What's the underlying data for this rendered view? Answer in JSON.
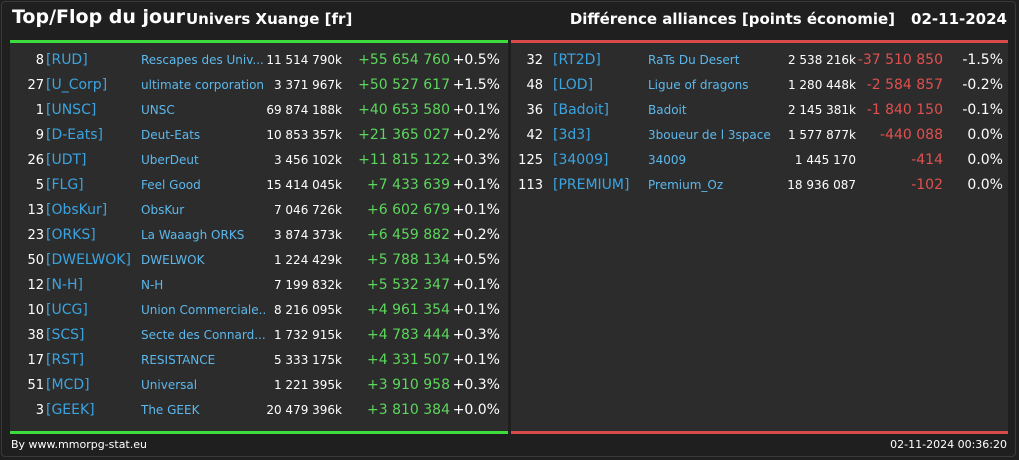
{
  "header": {
    "title": "Top/Flop du jour",
    "universe": "Univers Xuange [fr]",
    "section": "Différence alliances [points économie]",
    "date": "02-11-2024"
  },
  "colors": {
    "gain": "#5cd65c",
    "loss": "#e05050",
    "tag": "#3ba4e0"
  },
  "top": [
    {
      "rank": "8",
      "tag": "[RUD]",
      "name": "Rescapes des Univ...",
      "points": "11 514 790k",
      "diff": "+55 654 760",
      "pct": "+0.5%"
    },
    {
      "rank": "27",
      "tag": "[U_Corp]",
      "name": "ultimate corporation",
      "points": "3 371 967k",
      "diff": "+50 527 617",
      "pct": "+1.5%"
    },
    {
      "rank": "1",
      "tag": "[UNSC]",
      "name": "UNSC",
      "points": "69 874 188k",
      "diff": "+40 653 580",
      "pct": "+0.1%"
    },
    {
      "rank": "9",
      "tag": "[D-Eats]",
      "name": "Deut-Eats",
      "points": "10 853 357k",
      "diff": "+21 365 027",
      "pct": "+0.2%"
    },
    {
      "rank": "26",
      "tag": "[UDT]",
      "name": "UberDeut",
      "points": "3 456 102k",
      "diff": "+11 815 122",
      "pct": "+0.3%"
    },
    {
      "rank": "5",
      "tag": "[FLG]",
      "name": "Feel Good",
      "points": "15 414 045k",
      "diff": "+7 433 639",
      "pct": "+0.1%"
    },
    {
      "rank": "13",
      "tag": "[ObsKur]",
      "name": "ObsKur",
      "points": "7 046 726k",
      "diff": "+6 602 679",
      "pct": "+0.1%"
    },
    {
      "rank": "23",
      "tag": "[ORKS]",
      "name": "La Waaagh ORKS",
      "points": "3 874 373k",
      "diff": "+6 459 882",
      "pct": "+0.2%"
    },
    {
      "rank": "50",
      "tag": "[DWELWOK]",
      "name": "DWELWOK",
      "points": "1 224 429k",
      "diff": "+5 788 134",
      "pct": "+0.5%"
    },
    {
      "rank": "12",
      "tag": "[N-H]",
      "name": "N-H",
      "points": "7 199 832k",
      "diff": "+5 532 347",
      "pct": "+0.1%"
    },
    {
      "rank": "10",
      "tag": "[UCG]",
      "name": "Union Commerciale...",
      "points": "8 216 095k",
      "diff": "+4 961 354",
      "pct": "+0.1%"
    },
    {
      "rank": "38",
      "tag": "[SCS]",
      "name": "Secte des Connard...",
      "points": "1 732 915k",
      "diff": "+4 783 444",
      "pct": "+0.3%"
    },
    {
      "rank": "17",
      "tag": "[RST]",
      "name": "RESISTANCE",
      "points": "5 333 175k",
      "diff": "+4 331 507",
      "pct": "+0.1%"
    },
    {
      "rank": "51",
      "tag": "[MCD]",
      "name": "Universal",
      "points": "1 221 395k",
      "diff": "+3 910 958",
      "pct": "+0.3%"
    },
    {
      "rank": "3",
      "tag": "[GEEK]",
      "name": "The GEEK",
      "points": "20 479 396k",
      "diff": "+3 810 384",
      "pct": "+0.0%"
    }
  ],
  "flop": [
    {
      "rank": "32",
      "tag": "[RT2D]",
      "name": "RaTs Du Desert",
      "points": "2 538 216k",
      "diff": "-37 510 850",
      "pct": "-1.5%"
    },
    {
      "rank": "48",
      "tag": "[LOD]",
      "name": "Ligue of dragons",
      "points": "1 280 448k",
      "diff": "-2 584 857",
      "pct": "-0.2%"
    },
    {
      "rank": "36",
      "tag": "[Badoit]",
      "name": "Badoit",
      "points": "2 145 381k",
      "diff": "-1 840 150",
      "pct": "-0.1%"
    },
    {
      "rank": "42",
      "tag": "[3d3]",
      "name": "3boueur de l 3space",
      "points": "1 577 877k",
      "diff": "-440 088",
      "pct": "0.0%"
    },
    {
      "rank": "125",
      "tag": "[34009]",
      "name": "34009",
      "points": "1 445 170",
      "diff": "-414",
      "pct": "0.0%"
    },
    {
      "rank": "113",
      "tag": "[PREMIUM]",
      "name": "Premium_Oz",
      "points": "18 936 087",
      "diff": "-102",
      "pct": "0.0%"
    }
  ],
  "footer": {
    "source": "By www.mmorpg-stat.eu",
    "timestamp": "02-11-2024 00:36:20"
  }
}
